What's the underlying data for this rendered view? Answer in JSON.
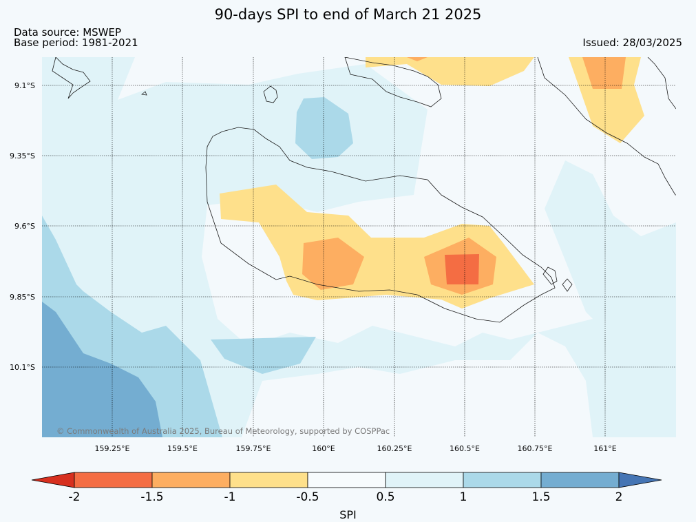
{
  "title": "90-days SPI to end of March 21 2025",
  "data_source": "Data source: MSWEP",
  "base_period": "Base period: 1981-2021",
  "issued": "Issued: 28/03/2025",
  "copyright": "© Commonwealth of Australia 2025, Bureau of Meteorology, supported by COSPPac",
  "lat_labels": [
    "9.1°S",
    "9.35°S",
    "9.6°S",
    "9.85°S",
    "10.1°S"
  ],
  "lon_labels": [
    "159.25°E",
    "159.5°E",
    "159.75°E",
    "160°E",
    "160.25°E",
    "160.5°E",
    "160.75°E",
    "161°E"
  ],
  "colorbar": {
    "label": "SPI",
    "ticks": [
      "-2",
      "-1.5",
      "-1",
      "-0.5",
      "0.5",
      "1",
      "1.5",
      "2"
    ],
    "colors": {
      "lt_-2": "#d7301f",
      "-2_-1.5": "#f46d43",
      "-1.5_-1": "#fdae61",
      "-1_-0.5": "#fee08b",
      "-0.5_0.5": "#f7fbfd",
      "0.5_1": "#e0f3f8",
      "1_1.5": "#abd9e9",
      "1.5_2": "#74add1",
      "gt_2": "#4575b4"
    }
  }
}
